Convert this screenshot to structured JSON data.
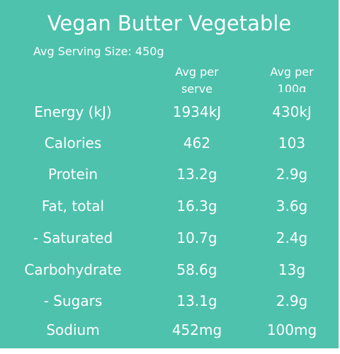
{
  "title": "Vegan Butter Vegetable",
  "serving_size": "Avg Serving Size: 450g",
  "columns": {
    "per_serve": [
      "Avg per",
      "serve"
    ],
    "per_100g": [
      "Avg per",
      "100g"
    ]
  },
  "rows": [
    {
      "label": "Energy (kJ)",
      "per_serve": "1934kJ",
      "per_100g": "430kJ"
    },
    {
      "label": "Calories",
      "per_serve": "462",
      "per_100g": "103"
    },
    {
      "label": "Protein",
      "per_serve": "13.2g",
      "per_100g": "2.9g"
    },
    {
      "label": "Fat, total",
      "per_serve": "16.3g",
      "per_100g": "3.6g"
    },
    {
      "label": "- Saturated",
      "per_serve": "10.7g",
      "per_100g": "2.4g"
    },
    {
      "label": "Carbohydrate",
      "per_serve": "58.6g",
      "per_100g": "13g"
    },
    {
      "label": "- Sugars",
      "per_serve": "13.1g",
      "per_100g": "2.9g"
    },
    {
      "label": "Sodium",
      "per_serve": "452mg",
      "per_100g": "100mg"
    }
  ],
  "colors": {
    "background": "#4ec2ad",
    "text": "#ffffff"
  }
}
